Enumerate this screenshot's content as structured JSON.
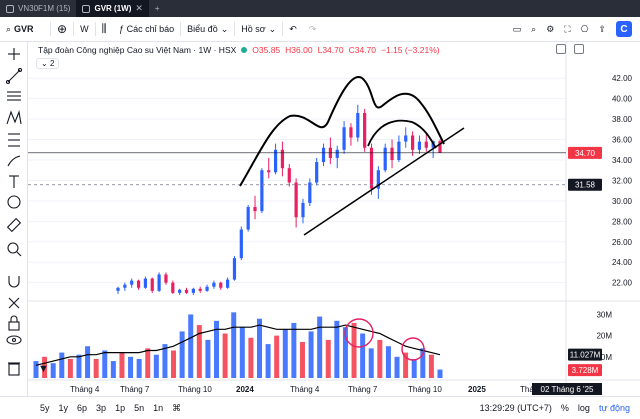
{
  "window_tabs": [
    {
      "label": "VN30F1M (15)",
      "active": false
    },
    {
      "label": "GVR (1W)",
      "active": true
    }
  ],
  "toolbar": {
    "symbol": "GVR",
    "interval": "W",
    "indicators_label": "Các chỉ báo",
    "chart_type_label": "Biểu đồ",
    "profile_label": "Hồ sơ",
    "brand_badge": "C"
  },
  "legend": {
    "title": "Tập đoàn Công nghiệp Cao su Việt Nam · 1W · HSX",
    "open": "O35.85",
    "high": "H36.00",
    "low": "L34.70",
    "close": "C34.70",
    "change": "−1.15 (−3.21%)",
    "collapse": "2"
  },
  "price_axis": {
    "labels": [
      "42.00",
      "40.00",
      "38.00",
      "36.00",
      "34.00",
      "32.00",
      "30.00",
      "28.00",
      "26.00",
      "24.00",
      "22.00"
    ],
    "current_price": "34.70",
    "crosshair_price": "31.58",
    "current_color": "#f23645"
  },
  "volume_axis": {
    "labels": [
      "30M",
      "20M",
      "10M"
    ],
    "ma_value": "11.027M",
    "last_volume": "3.728M"
  },
  "time_axis": {
    "labels": [
      "Tháng 4",
      "Tháng 7",
      "Tháng 10",
      "2024",
      "Tháng 4",
      "Tháng 7",
      "Tháng 10",
      "2025",
      "Tháng"
    ],
    "crosshair_date": "02 Tháng 6 '25"
  },
  "colors": {
    "up": "#2962ff",
    "down": "#e91e63",
    "volume_up": "#2962ff",
    "volume_down": "#f23645",
    "drawing": "#000000",
    "annotation_circle": "#e91e63"
  },
  "bottom": {
    "ranges": [
      "5y",
      "1y",
      "6p",
      "3p",
      "1p",
      "5n",
      "1n"
    ],
    "time": "13:29:29 (UTC+7)",
    "percent": "%",
    "log": "log",
    "auto": "tự động"
  },
  "chart_data": {
    "type": "candlestick",
    "interval": "1W",
    "y_range": [
      20.5,
      43
    ],
    "price_scale_labels": [
      22,
      24,
      26,
      28,
      30,
      32,
      34,
      36,
      38,
      40,
      42
    ],
    "candles": [
      {
        "o": 21.2,
        "h": 21.6,
        "l": 20.9,
        "c": 21.5
      },
      {
        "o": 21.5,
        "h": 22.0,
        "l": 21.2,
        "c": 21.8
      },
      {
        "o": 21.8,
        "h": 22.4,
        "l": 21.5,
        "c": 22.2
      },
      {
        "o": 22.2,
        "h": 22.3,
        "l": 21.3,
        "c": 21.5
      },
      {
        "o": 21.5,
        "h": 22.6,
        "l": 21.4,
        "c": 22.4
      },
      {
        "o": 22.4,
        "h": 22.5,
        "l": 21.0,
        "c": 21.2
      },
      {
        "o": 21.2,
        "h": 23.0,
        "l": 21.1,
        "c": 22.8
      },
      {
        "o": 22.8,
        "h": 23.0,
        "l": 21.8,
        "c": 22.0
      },
      {
        "o": 22.0,
        "h": 22.2,
        "l": 20.9,
        "c": 21.0
      },
      {
        "o": 21.0,
        "h": 21.4,
        "l": 20.8,
        "c": 21.3
      },
      {
        "o": 21.3,
        "h": 21.5,
        "l": 20.9,
        "c": 21.0
      },
      {
        "o": 21.0,
        "h": 21.5,
        "l": 20.8,
        "c": 21.4
      },
      {
        "o": 21.4,
        "h": 21.6,
        "l": 21.0,
        "c": 21.2
      },
      {
        "o": 21.2,
        "h": 21.8,
        "l": 21.1,
        "c": 21.6
      },
      {
        "o": 21.6,
        "h": 22.2,
        "l": 21.4,
        "c": 22.0
      },
      {
        "o": 22.0,
        "h": 22.1,
        "l": 21.3,
        "c": 21.5
      },
      {
        "o": 21.5,
        "h": 22.5,
        "l": 21.4,
        "c": 22.3
      },
      {
        "o": 22.3,
        "h": 24.6,
        "l": 22.2,
        "c": 24.4
      },
      {
        "o": 24.4,
        "h": 27.5,
        "l": 24.2,
        "c": 27.2
      },
      {
        "o": 27.2,
        "h": 29.6,
        "l": 27.0,
        "c": 29.4
      },
      {
        "o": 29.4,
        "h": 30.5,
        "l": 28.2,
        "c": 29.0
      },
      {
        "o": 29.0,
        "h": 33.2,
        "l": 28.8,
        "c": 33.0
      },
      {
        "o": 33.0,
        "h": 34.2,
        "l": 32.2,
        "c": 32.8
      },
      {
        "o": 32.8,
        "h": 35.6,
        "l": 32.6,
        "c": 35.0
      },
      {
        "o": 35.0,
        "h": 35.8,
        "l": 32.4,
        "c": 33.2
      },
      {
        "o": 33.2,
        "h": 33.6,
        "l": 31.4,
        "c": 31.8
      },
      {
        "o": 31.8,
        "h": 32.2,
        "l": 27.4,
        "c": 28.4
      },
      {
        "o": 28.4,
        "h": 30.2,
        "l": 27.8,
        "c": 29.8
      },
      {
        "o": 29.8,
        "h": 32.2,
        "l": 29.5,
        "c": 31.8
      },
      {
        "o": 31.8,
        "h": 34.2,
        "l": 31.5,
        "c": 33.8
      },
      {
        "o": 33.8,
        "h": 35.6,
        "l": 33.4,
        "c": 35.2
      },
      {
        "o": 35.2,
        "h": 36.2,
        "l": 33.6,
        "c": 34.2
      },
      {
        "o": 34.2,
        "h": 35.4,
        "l": 33.2,
        "c": 35.0
      },
      {
        "o": 35.0,
        "h": 37.8,
        "l": 34.6,
        "c": 37.2
      },
      {
        "o": 37.2,
        "h": 37.6,
        "l": 35.4,
        "c": 36.2
      },
      {
        "o": 36.2,
        "h": 39.4,
        "l": 35.8,
        "c": 38.6
      },
      {
        "o": 38.6,
        "h": 39.0,
        "l": 34.8,
        "c": 35.2
      },
      {
        "o": 35.2,
        "h": 35.6,
        "l": 30.6,
        "c": 31.2
      },
      {
        "o": 31.2,
        "h": 33.4,
        "l": 30.2,
        "c": 33.0
      },
      {
        "o": 33.0,
        "h": 35.6,
        "l": 32.8,
        "c": 35.2
      },
      {
        "o": 35.2,
        "h": 36.0,
        "l": 33.2,
        "c": 34.0
      },
      {
        "o": 34.0,
        "h": 36.4,
        "l": 33.8,
        "c": 35.8
      },
      {
        "o": 35.8,
        "h": 37.2,
        "l": 35.2,
        "c": 36.4
      },
      {
        "o": 36.4,
        "h": 36.8,
        "l": 34.4,
        "c": 35.0
      },
      {
        "o": 35.0,
        "h": 36.4,
        "l": 34.6,
        "c": 35.8
      },
      {
        "o": 35.8,
        "h": 36.6,
        "l": 34.8,
        "c": 35.2
      },
      {
        "o": 35.2,
        "h": 35.9,
        "l": 34.2,
        "c": 35.85
      },
      {
        "o": 35.85,
        "h": 36.0,
        "l": 34.7,
        "c": 34.7
      }
    ],
    "volume_range_m": [
      0,
      34
    ],
    "volume_scale_labels": [
      "10M",
      "20M",
      "30M"
    ],
    "volumes_m": [
      8,
      10,
      7,
      12,
      9,
      11,
      15,
      9,
      13,
      8,
      12,
      10,
      9,
      14,
      11,
      16,
      13,
      22,
      30,
      25,
      18,
      27,
      21,
      31,
      24,
      19,
      28,
      16,
      20,
      23,
      26,
      17,
      22,
      29,
      18,
      27,
      24,
      26,
      21,
      14,
      18,
      15,
      10,
      12,
      9,
      14,
      11,
      4
    ],
    "volume_ma_m": [
      6,
      7,
      8,
      9,
      10,
      10,
      11,
      11,
      12,
      12,
      12,
      12,
      12,
      13,
      13,
      14,
      15,
      17,
      19,
      21,
      22,
      23,
      23,
      24,
      24,
      24,
      25,
      24,
      23,
      23,
      23,
      23,
      23,
      24,
      24,
      24,
      25,
      24,
      23,
      22,
      21,
      19,
      17,
      15,
      14,
      13,
      12,
      11
    ]
  }
}
